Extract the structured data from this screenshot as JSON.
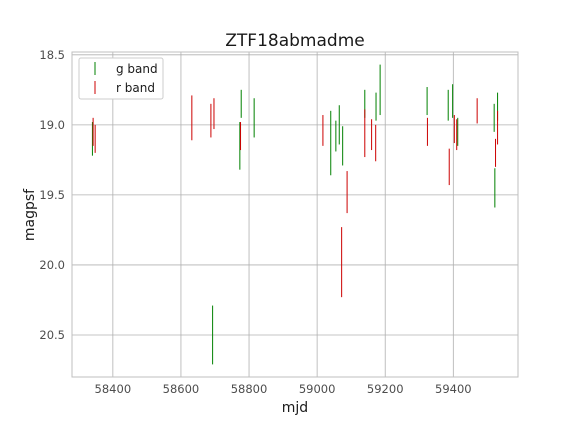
{
  "chart_data": {
    "type": "errorbar",
    "title": "ZTF18abmadme",
    "xlabel": "mjd",
    "ylabel": "magpsf",
    "xlim": [
      58280,
      59590
    ],
    "ylim": [
      20.8,
      18.48
    ],
    "y_inverted": true,
    "grid": true,
    "legend_position": "upper-left",
    "x_ticks": [
      58400,
      58600,
      58800,
      59000,
      59200,
      59400
    ],
    "x_tick_labels": [
      "58400",
      "58600",
      "58800",
      "59000",
      "59200",
      "59400"
    ],
    "y_ticks": [
      18.5,
      19.0,
      19.5,
      20.0,
      20.5
    ],
    "y_tick_labels": [
      "18.5",
      "19.0",
      "19.5",
      "20.0",
      "20.5"
    ],
    "series": [
      {
        "name": "g band",
        "color": "#008000",
        "points": [
          {
            "x": 58340,
            "y": 19.1,
            "err": 0.12
          },
          {
            "x": 58693,
            "y": 20.5,
            "err": 0.21
          },
          {
            "x": 58773,
            "y": 19.15,
            "err": 0.17
          },
          {
            "x": 58777,
            "y": 18.85,
            "err": 0.1
          },
          {
            "x": 58815,
            "y": 18.95,
            "err": 0.14
          },
          {
            "x": 59040,
            "y": 19.13,
            "err": 0.23
          },
          {
            "x": 59055,
            "y": 19.08,
            "err": 0.11
          },
          {
            "x": 59065,
            "y": 19.0,
            "err": 0.14
          },
          {
            "x": 59075,
            "y": 19.15,
            "err": 0.14
          },
          {
            "x": 59140,
            "y": 18.85,
            "err": 0.1
          },
          {
            "x": 59173,
            "y": 18.87,
            "err": 0.1
          },
          {
            "x": 59185,
            "y": 18.75,
            "err": 0.18
          },
          {
            "x": 59323,
            "y": 18.83,
            "err": 0.1
          },
          {
            "x": 59385,
            "y": 18.86,
            "err": 0.11
          },
          {
            "x": 59398,
            "y": 18.83,
            "err": 0.12
          },
          {
            "x": 59413,
            "y": 19.05,
            "err": 0.1
          },
          {
            "x": 59520,
            "y": 18.95,
            "err": 0.1
          },
          {
            "x": 59522,
            "y": 19.45,
            "err": 0.14
          },
          {
            "x": 59530,
            "y": 18.87,
            "err": 0.1
          }
        ]
      },
      {
        "name": "r band",
        "color": "#cc0000",
        "points": [
          {
            "x": 58342,
            "y": 19.05,
            "err": 0.1
          },
          {
            "x": 58348,
            "y": 19.1,
            "err": 0.1
          },
          {
            "x": 58632,
            "y": 18.95,
            "err": 0.16
          },
          {
            "x": 58688,
            "y": 18.97,
            "err": 0.12
          },
          {
            "x": 58697,
            "y": 18.92,
            "err": 0.11
          },
          {
            "x": 58775,
            "y": 19.08,
            "err": 0.1
          },
          {
            "x": 59017,
            "y": 19.04,
            "err": 0.11
          },
          {
            "x": 59072,
            "y": 19.98,
            "err": 0.25
          },
          {
            "x": 59088,
            "y": 19.48,
            "err": 0.15
          },
          {
            "x": 59140,
            "y": 19.06,
            "err": 0.17
          },
          {
            "x": 59160,
            "y": 19.07,
            "err": 0.11
          },
          {
            "x": 59172,
            "y": 19.13,
            "err": 0.13
          },
          {
            "x": 59324,
            "y": 19.05,
            "err": 0.1
          },
          {
            "x": 59388,
            "y": 19.3,
            "err": 0.13
          },
          {
            "x": 59403,
            "y": 19.03,
            "err": 0.1
          },
          {
            "x": 59410,
            "y": 19.07,
            "err": 0.11
          },
          {
            "x": 59470,
            "y": 18.9,
            "err": 0.09
          },
          {
            "x": 59524,
            "y": 19.2,
            "err": 0.1
          },
          {
            "x": 59530,
            "y": 19.02,
            "err": 0.12
          }
        ]
      }
    ]
  }
}
